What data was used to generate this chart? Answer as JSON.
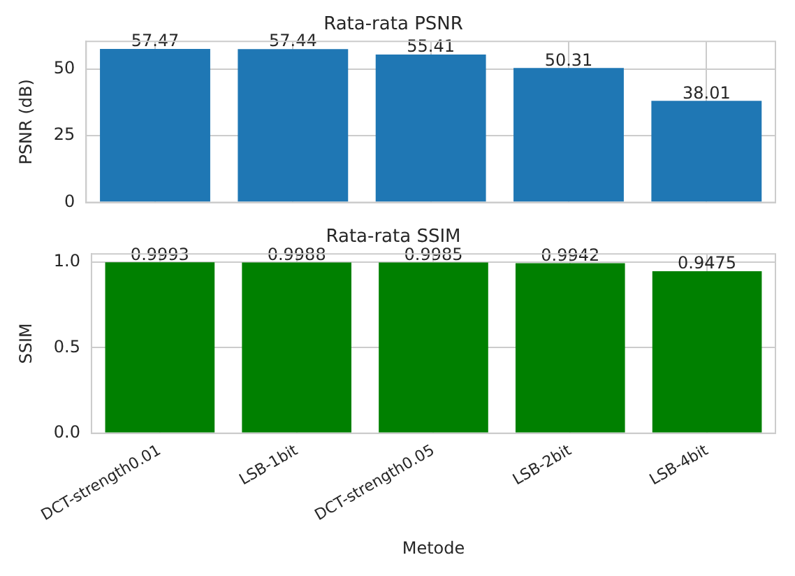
{
  "chart_data": [
    {
      "type": "bar",
      "title": "Rata-rata PSNR",
      "ylabel": "PSNR (dB)",
      "categories": [
        null,
        null,
        null,
        null,
        null
      ],
      "values": [
        57.47,
        57.44,
        55.41,
        50.31,
        38.01
      ],
      "color": "#1f77b4",
      "ylim": [
        0,
        60.3
      ],
      "yticks": [
        0,
        25,
        50
      ],
      "grid": true,
      "data_labels": true,
      "tick_labels": "y"
    },
    {
      "type": "bar",
      "title": "Rata-rata SSIM",
      "ylabel": "SSIM",
      "xlabel": "Metode",
      "categories": [
        "DCT-strength0.01",
        "LSB-1bit",
        "DCT-strength0.05",
        "LSB-2bit",
        "LSB-4bit"
      ],
      "values": [
        0.9993,
        0.9988,
        0.9985,
        0.9942,
        0.9475
      ],
      "color": "#008000",
      "ylim": [
        0,
        1.049
      ],
      "yticks": [
        {
          "value": 0,
          "label": "0.0"
        },
        0.5,
        {
          "value": 1,
          "label": "1.0"
        }
      ],
      "grid": true,
      "data_labels": true
    }
  ]
}
